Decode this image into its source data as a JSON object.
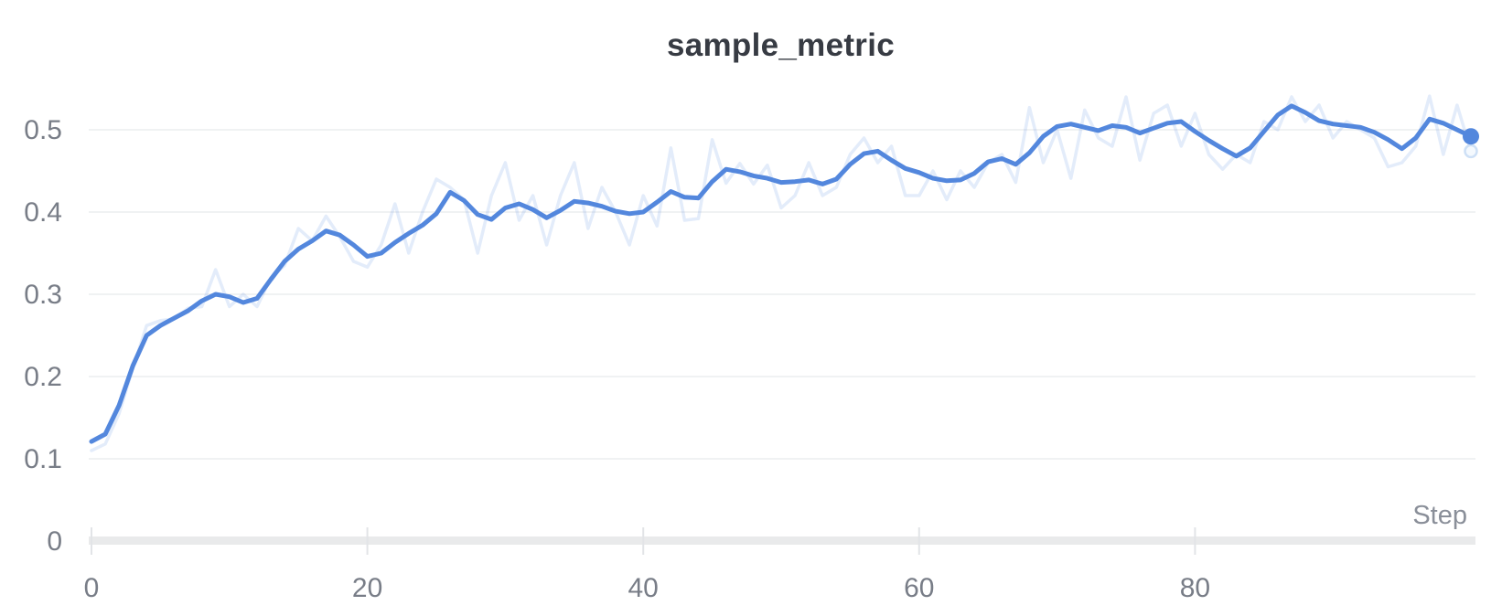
{
  "colors": {
    "line": "#5387DD",
    "gridline": "#ECEDEF",
    "axis_line": "#E9EAEB",
    "tick": "#E2E4E7",
    "axis_text": "#787D87",
    "title_text": "#373B43",
    "xlabel_text": "#8A8F99",
    "raw_ring_fill": "#F4F9FE",
    "raw_ring_stroke": "#CEE0F6",
    "background": "#FFFFFF"
  },
  "chart_data": {
    "type": "line",
    "title": "sample_metric",
    "xlabel": "Step",
    "ylabel": "",
    "x_ticks": [
      0,
      20,
      40,
      60,
      80
    ],
    "y_ticks": [
      0,
      0.1,
      0.2,
      0.3,
      0.4,
      0.5
    ],
    "xlim": [
      0,
      100
    ],
    "ylim": [
      0,
      0.547
    ],
    "grid": "horizontal",
    "legend": "none",
    "x": [
      0,
      1,
      2,
      3,
      4,
      5,
      6,
      7,
      8,
      9,
      10,
      11,
      12,
      13,
      14,
      15,
      16,
      17,
      18,
      19,
      20,
      21,
      22,
      23,
      24,
      25,
      26,
      27,
      28,
      29,
      30,
      31,
      32,
      33,
      34,
      35,
      36,
      37,
      38,
      39,
      40,
      41,
      42,
      43,
      44,
      45,
      46,
      47,
      48,
      49,
      50,
      51,
      52,
      53,
      54,
      55,
      56,
      57,
      58,
      59,
      60,
      61,
      62,
      63,
      64,
      65,
      66,
      67,
      68,
      69,
      70,
      71,
      72,
      73,
      74,
      75,
      76,
      77,
      78,
      79,
      80,
      81,
      82,
      83,
      84,
      85,
      86,
      87,
      88,
      89,
      90,
      91,
      92,
      93,
      94,
      95,
      96,
      97,
      98,
      99,
      100
    ],
    "series": [
      {
        "name": "original",
        "role": "raw",
        "opacity": 0.16,
        "values": [
          0.11,
          0.118,
          0.155,
          0.21,
          0.262,
          0.268,
          0.27,
          0.283,
          0.285,
          0.33,
          0.285,
          0.3,
          0.285,
          0.32,
          0.335,
          0.38,
          0.365,
          0.395,
          0.37,
          0.34,
          0.333,
          0.36,
          0.41,
          0.35,
          0.4,
          0.44,
          0.43,
          0.415,
          0.35,
          0.42,
          0.46,
          0.39,
          0.42,
          0.36,
          0.42,
          0.46,
          0.38,
          0.43,
          0.4,
          0.36,
          0.42,
          0.383,
          0.478,
          0.39,
          0.392,
          0.488,
          0.435,
          0.459,
          0.434,
          0.457,
          0.405,
          0.42,
          0.46,
          0.42,
          0.43,
          0.47,
          0.49,
          0.46,
          0.48,
          0.42,
          0.42,
          0.45,
          0.415,
          0.45,
          0.43,
          0.46,
          0.47,
          0.436,
          0.527,
          0.46,
          0.5,
          0.441,
          0.524,
          0.49,
          0.48,
          0.54,
          0.463,
          0.52,
          0.53,
          0.48,
          0.52,
          0.47,
          0.452,
          0.47,
          0.46,
          0.51,
          0.5,
          0.54,
          0.51,
          0.53,
          0.49,
          0.51,
          0.5,
          0.49,
          0.455,
          0.46,
          0.48,
          0.541,
          0.47,
          0.53,
          0.474
        ]
      },
      {
        "name": "smoothed",
        "role": "smoothed",
        "opacity": 1,
        "values": [
          0.121,
          0.13,
          0.165,
          0.213,
          0.25,
          0.262,
          0.271,
          0.28,
          0.292,
          0.3,
          0.297,
          0.29,
          0.295,
          0.318,
          0.34,
          0.355,
          0.365,
          0.377,
          0.372,
          0.36,
          0.346,
          0.35,
          0.363,
          0.374,
          0.384,
          0.398,
          0.424,
          0.414,
          0.397,
          0.391,
          0.405,
          0.41,
          0.403,
          0.393,
          0.402,
          0.413,
          0.411,
          0.407,
          0.401,
          0.398,
          0.4,
          0.412,
          0.425,
          0.418,
          0.417,
          0.437,
          0.452,
          0.449,
          0.444,
          0.441,
          0.436,
          0.437,
          0.439,
          0.434,
          0.44,
          0.458,
          0.471,
          0.474,
          0.463,
          0.453,
          0.448,
          0.441,
          0.438,
          0.439,
          0.447,
          0.461,
          0.465,
          0.458,
          0.472,
          0.492,
          0.504,
          0.507,
          0.503,
          0.499,
          0.505,
          0.503,
          0.496,
          0.502,
          0.508,
          0.51,
          0.498,
          0.487,
          0.477,
          0.468,
          0.478,
          0.498,
          0.518,
          0.529,
          0.521,
          0.511,
          0.507,
          0.505,
          0.503,
          0.497,
          0.488,
          0.477,
          0.49,
          0.513,
          0.508,
          0.5,
          0.492
        ]
      }
    ],
    "end_markers": {
      "smoothed_dot": {
        "x": 100,
        "y": 0.492
      },
      "raw_ring": {
        "x": 100,
        "y": 0.474
      }
    }
  }
}
